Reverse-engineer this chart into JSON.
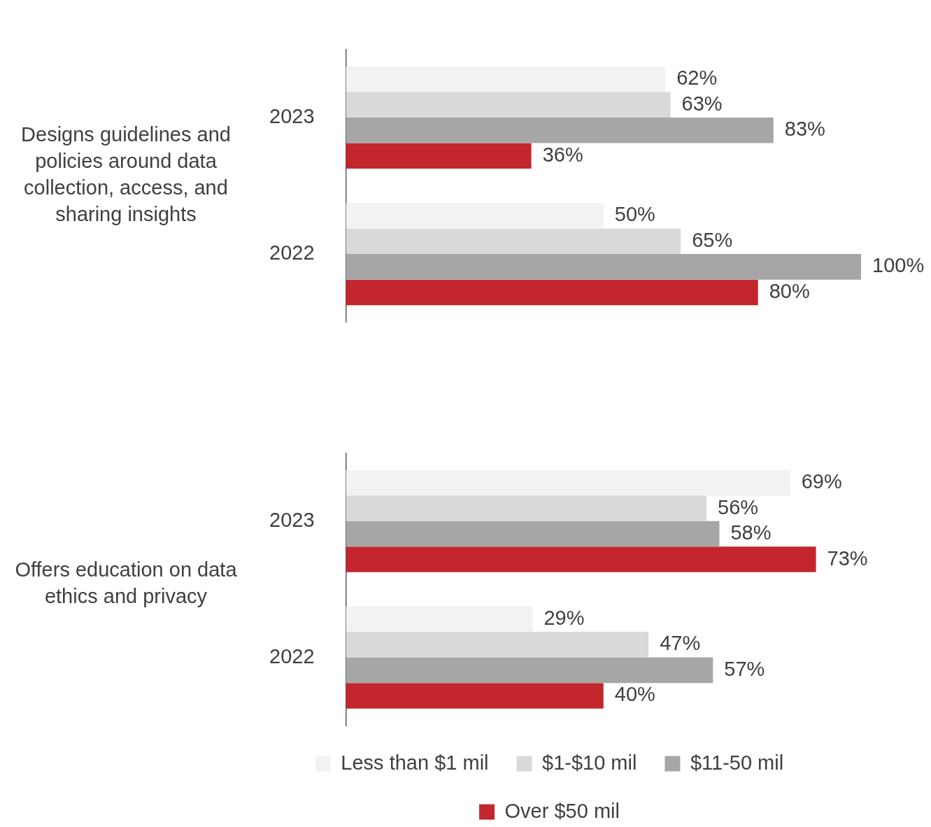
{
  "chart_data": [
    {
      "type": "bar",
      "orientation": "horizontal",
      "ylabel": "Designs guidelines and policies around data collection, access, and sharing insights",
      "categories": [
        "2023",
        "2022"
      ],
      "tick_labels": "y",
      "legend": false,
      "series": [
        {
          "color": "#f2f2f2",
          "values": [
            62,
            50
          ],
          "value_labels": [
            "62%",
            "50%"
          ]
        },
        {
          "color": "#d9d9d9",
          "values": [
            63,
            65
          ],
          "value_labels": [
            "63%",
            "65%"
          ]
        },
        {
          "color": "#a6a6a6",
          "values": [
            83,
            100
          ],
          "value_labels": [
            "83%",
            "100%"
          ]
        },
        {
          "color": "#c4262e",
          "values": [
            36,
            80
          ],
          "value_labels": [
            "36%",
            "80%"
          ]
        }
      ]
    },
    {
      "type": "bar",
      "orientation": "horizontal",
      "ylabel": "Offers education on data ethics and privacy",
      "categories": [
        "2023",
        "2022"
      ],
      "tick_labels": "y",
      "legend": "bottom",
      "series": [
        {
          "name": "Less than $1 mil",
          "color": "#f2f2f2",
          "values": [
            69,
            29
          ],
          "value_labels": [
            "69%",
            "29%"
          ]
        },
        {
          "name": "$1-$10 mil",
          "color": "#d9d9d9",
          "values": [
            56,
            47
          ],
          "value_labels": [
            "56%",
            "47%"
          ]
        },
        {
          "name": "$11-50 mil",
          "color": "#a6a6a6",
          "values": [
            58,
            57
          ],
          "value_labels": [
            "58%",
            "57%"
          ]
        },
        {
          "name": "Over $50 mil",
          "color": "#c4262e",
          "values": [
            73,
            40
          ],
          "value_labels": [
            "73%",
            "40%"
          ]
        }
      ]
    }
  ]
}
